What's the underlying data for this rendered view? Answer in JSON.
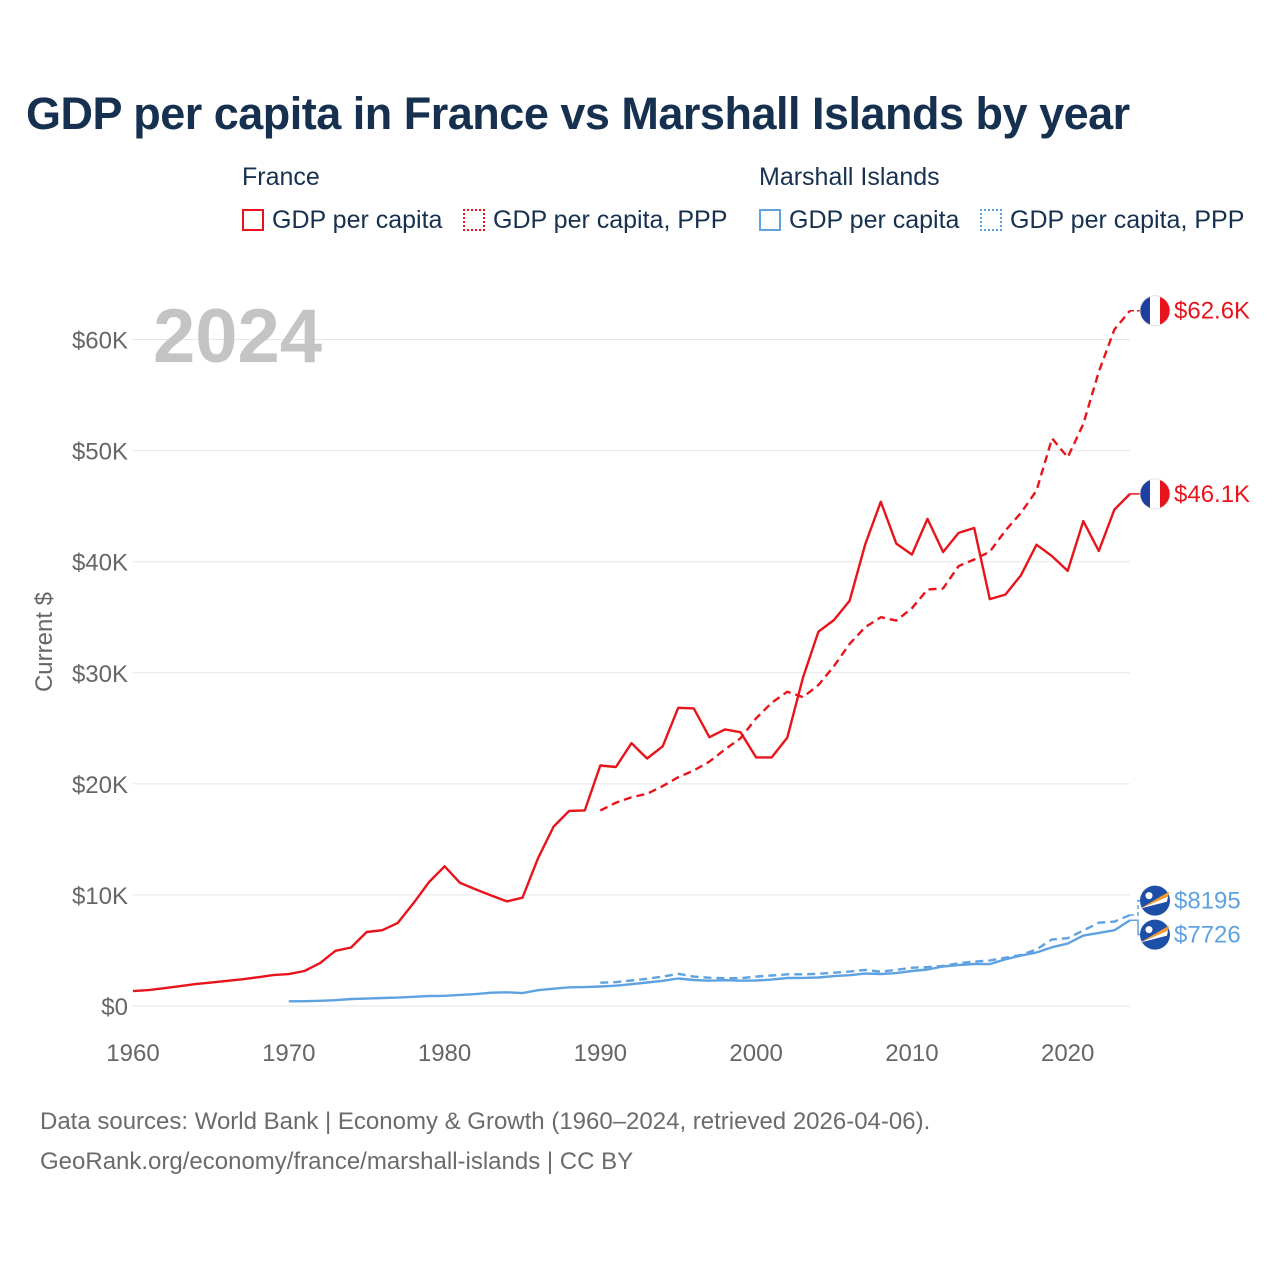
{
  "title": "GDP per capita in France vs Marshall Islands by year",
  "legend": {
    "groups": [
      {
        "name": "France",
        "items": [
          "GDP per capita",
          "GDP per capita, PPP"
        ]
      },
      {
        "name": "Marshall Islands",
        "items": [
          "GDP per capita",
          "GDP per capita, PPP"
        ]
      }
    ]
  },
  "footer": {
    "line1": "Data sources: World Bank | Economy & Growth (1960–2024, retrieved 2026-04-06).",
    "line2": "GeoRank.org/economy/france/marshall-islands | CC BY"
  },
  "colors": {
    "france": "#e8141b",
    "marshall": "#5fa2e0",
    "grid": "#e6e6e6",
    "axis_text": "#666666",
    "year_watermark": "#c4c4c4"
  },
  "chart_data": {
    "type": "line",
    "year_label": "2024",
    "ylabel": "Current $",
    "xlim": [
      1960,
      2024
    ],
    "ylim": [
      0,
      65000
    ],
    "xticks": [
      1960,
      1970,
      1980,
      1990,
      2000,
      2010,
      2020
    ],
    "xtick_labels": [
      "1960",
      "1970",
      "1980",
      "1990",
      "2000",
      "2010",
      "2020"
    ],
    "yticks": [
      0,
      10000,
      20000,
      30000,
      40000,
      50000,
      60000
    ],
    "ytick_labels": [
      "$0",
      "$10K",
      "$20K",
      "$30K",
      "$40K",
      "$50K",
      "$60K"
    ],
    "series": [
      {
        "name": "France GDP per capita",
        "country": "france",
        "dash": false,
        "end_label": "$46.1K",
        "x": [
          1960,
          1961,
          1962,
          1963,
          1964,
          1965,
          1966,
          1967,
          1968,
          1969,
          1970,
          1971,
          1972,
          1973,
          1974,
          1975,
          1976,
          1977,
          1978,
          1979,
          1980,
          1981,
          1982,
          1983,
          1984,
          1985,
          1986,
          1987,
          1988,
          1989,
          1990,
          1991,
          1992,
          1993,
          1994,
          1995,
          1996,
          1997,
          1998,
          1999,
          2000,
          2001,
          2002,
          2003,
          2004,
          2005,
          2006,
          2007,
          2008,
          2009,
          2010,
          2011,
          2012,
          2013,
          2014,
          2015,
          2016,
          2017,
          2018,
          2019,
          2020,
          2021,
          2022,
          2023,
          2024
        ],
        "values": [
          1340,
          1430,
          1600,
          1780,
          1970,
          2110,
          2260,
          2400,
          2580,
          2780,
          2870,
          3150,
          3850,
          4970,
          5270,
          6660,
          6820,
          7480,
          9250,
          11150,
          12580,
          11080,
          10500,
          9950,
          9420,
          9750,
          13300,
          16150,
          17560,
          17610,
          21650,
          21520,
          23660,
          22280,
          23380,
          26850,
          26790,
          24200,
          24900,
          24650,
          22380,
          22380,
          24160,
          29540,
          33700,
          34750,
          36480,
          41560,
          45400,
          41630,
          40640,
          43850,
          40870,
          42590,
          43030,
          36630,
          37040,
          38780,
          41530,
          40490,
          39170,
          43650,
          40960,
          44690,
          46100
        ]
      },
      {
        "name": "France GDP per capita, PPP",
        "country": "france",
        "dash": true,
        "end_label": "$62.6K",
        "x": [
          1990,
          1991,
          1992,
          1993,
          1994,
          1995,
          1996,
          1997,
          1998,
          1999,
          2000,
          2001,
          2002,
          2003,
          2004,
          2005,
          2006,
          2007,
          2008,
          2009,
          2010,
          2011,
          2012,
          2013,
          2014,
          2015,
          2016,
          2017,
          2018,
          2019,
          2020,
          2021,
          2022,
          2023,
          2024
        ],
        "values": [
          17600,
          18300,
          18800,
          19100,
          19800,
          20600,
          21200,
          22000,
          23100,
          24100,
          25900,
          27300,
          28300,
          27800,
          28900,
          30600,
          32600,
          34100,
          35000,
          34700,
          35800,
          37500,
          37600,
          39600,
          40200,
          40900,
          42800,
          44400,
          46400,
          51100,
          49400,
          52400,
          57100,
          60900,
          62600
        ]
      },
      {
        "name": "Marshall Islands GDP per capita",
        "country": "marshall",
        "dash": false,
        "end_label": "$7726",
        "x": [
          1970,
          1971,
          1972,
          1973,
          1974,
          1975,
          1976,
          1977,
          1978,
          1979,
          1980,
          1981,
          1982,
          1983,
          1984,
          1985,
          1986,
          1987,
          1988,
          1989,
          1990,
          1991,
          1992,
          1993,
          1994,
          1995,
          1996,
          1997,
          1998,
          1999,
          2000,
          2001,
          2002,
          2003,
          2004,
          2005,
          2006,
          2007,
          2008,
          2009,
          2010,
          2011,
          2012,
          2013,
          2014,
          2015,
          2016,
          2017,
          2018,
          2019,
          2020,
          2021,
          2022,
          2023,
          2024
        ],
        "values": [
          420,
          430,
          470,
          520,
          630,
          670,
          720,
          760,
          830,
          900,
          920,
          1000,
          1070,
          1200,
          1230,
          1160,
          1420,
          1560,
          1680,
          1700,
          1760,
          1830,
          1960,
          2120,
          2270,
          2480,
          2340,
          2280,
          2320,
          2280,
          2300,
          2380,
          2520,
          2530,
          2570,
          2690,
          2770,
          2920,
          2880,
          2960,
          3150,
          3290,
          3560,
          3680,
          3780,
          3770,
          4200,
          4540,
          4820,
          5290,
          5620,
          6340,
          6580,
          6820,
          7726
        ]
      },
      {
        "name": "Marshall Islands GDP per capita, PPP",
        "country": "marshall",
        "dash": true,
        "end_label": "$8195",
        "x": [
          1990,
          1991,
          1992,
          1993,
          1994,
          1995,
          1996,
          1997,
          1998,
          1999,
          2000,
          2001,
          2002,
          2003,
          2004,
          2005,
          2006,
          2007,
          2008,
          2009,
          2010,
          2011,
          2012,
          2013,
          2014,
          2015,
          2016,
          2017,
          2018,
          2019,
          2020,
          2021,
          2022,
          2023,
          2024
        ],
        "values": [
          2100,
          2150,
          2300,
          2450,
          2650,
          2900,
          2650,
          2550,
          2500,
          2500,
          2650,
          2750,
          2850,
          2850,
          2900,
          3000,
          3100,
          3250,
          3100,
          3250,
          3450,
          3500,
          3600,
          3850,
          4000,
          4100,
          4350,
          4600,
          5100,
          6000,
          6100,
          6800,
          7500,
          7600,
          8195
        ]
      }
    ]
  }
}
